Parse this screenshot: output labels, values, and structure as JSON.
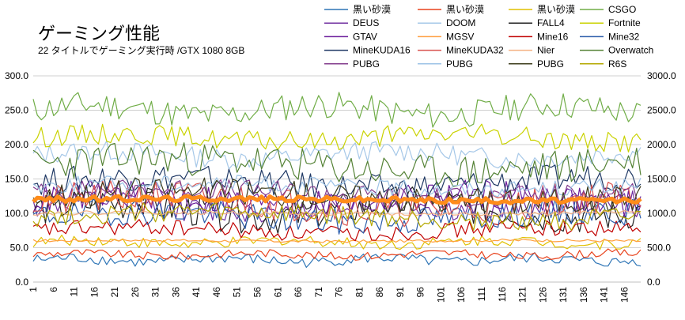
{
  "chart_data": {
    "type": "line",
    "title": "ゲーミング性能",
    "subtitle": "22 タイトルでゲーミング実行時 /GTX 1080 8GB",
    "xlabel": "",
    "ylabel": "",
    "ylim": [
      0,
      300
    ],
    "y2lim": [
      0,
      3000
    ],
    "y_ticks": [
      "0.0",
      "50.0",
      "100.0",
      "150.0",
      "200.0",
      "250.0",
      "300.0"
    ],
    "y2_ticks": [
      "0.0",
      "500.0",
      "1000.0",
      "1500.0",
      "2000.0",
      "2500.0",
      "3000.0"
    ],
    "x_ticks": [
      "1",
      "6",
      "11",
      "16",
      "21",
      "26",
      "31",
      "36",
      "41",
      "46",
      "51",
      "56",
      "61",
      "66",
      "71",
      "76",
      "81",
      "86",
      "91",
      "96",
      "101",
      "106",
      "111",
      "116",
      "121",
      "126",
      "131",
      "136",
      "141",
      "146"
    ],
    "x_count": 150,
    "grid": true,
    "legend_position": "top-right",
    "series": [
      {
        "name": "黒い砂漠",
        "color": "#2e75b6",
        "base": 32,
        "amp": 8,
        "seed": 1
      },
      {
        "name": "黒い砂漠",
        "color": "#e8421c",
        "base": 40,
        "amp": 6,
        "seed": 2
      },
      {
        "name": "黒い砂漠",
        "color": "#e0c000",
        "base": 58,
        "amp": 8,
        "seed": 3
      },
      {
        "name": "CSGO",
        "color": "#70ad47",
        "base": 250,
        "amp": 20,
        "seed": 4
      },
      {
        "name": "DEUS",
        "color": "#7030a0",
        "base": 110,
        "amp": 18,
        "seed": 5
      },
      {
        "name": "DOOM",
        "color": "#a6c8e8",
        "base": 185,
        "amp": 15,
        "seed": 6
      },
      {
        "name": "FALL4",
        "color": "#222222",
        "base": 105,
        "amp": 25,
        "seed": 7
      },
      {
        "name": "Fortnite",
        "color": "#c9d200",
        "base": 210,
        "amp": 15,
        "seed": 8
      },
      {
        "name": "GTAV",
        "color": "#6a1b9a",
        "base": 120,
        "amp": 22,
        "seed": 9
      },
      {
        "name": "MGSV",
        "color": "#ff9f40",
        "base": 60,
        "amp": 2,
        "seed": 10
      },
      {
        "name": "Mine16",
        "color": "#c00000",
        "base": 75,
        "amp": 12,
        "seed": 11
      },
      {
        "name": "Mine32",
        "color": "#2a5caa",
        "base": 95,
        "amp": 20,
        "seed": 12
      },
      {
        "name": "MineKUDA16",
        "color": "#1f3864",
        "base": 145,
        "amp": 20,
        "seed": 13
      },
      {
        "name": "MineKUDA32",
        "color": "#d9534f",
        "base": 115,
        "amp": 25,
        "seed": 14
      },
      {
        "name": "Nier",
        "color": "#f4b183",
        "base": 100,
        "amp": 3,
        "seed": 15
      },
      {
        "name": "Overwatch",
        "color": "#548235",
        "base": 170,
        "amp": 25,
        "seed": 16
      },
      {
        "name": "PUBG",
        "color": "#833c8c",
        "base": 130,
        "amp": 15,
        "seed": 17
      },
      {
        "name": "PUBG",
        "color": "#9dc3e6",
        "base": 140,
        "amp": 12,
        "seed": 18
      },
      {
        "name": "PUBG",
        "color": "#3d3d1c",
        "base": 125,
        "amp": 20,
        "seed": 19
      },
      {
        "name": "R6S",
        "color": "#b4a800",
        "base": 95,
        "amp": 15,
        "seed": 20
      },
      {
        "name": "",
        "color": "#ff8c1a",
        "base": 120,
        "amp": 4,
        "seed": 21,
        "width": 5
      }
    ]
  }
}
